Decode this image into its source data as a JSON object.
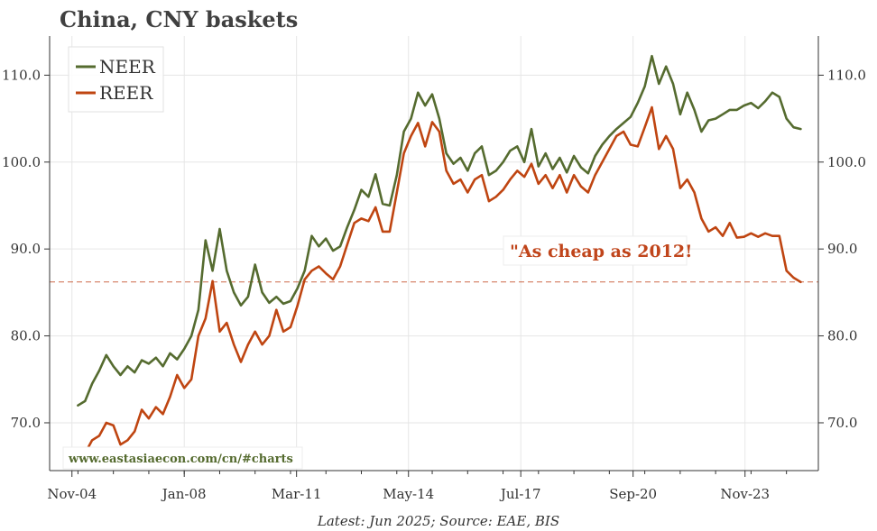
{
  "chart_data": {
    "type": "line",
    "title": "China, CNY baskets",
    "source_note": "Latest: Jun 2025; Source: EAE, BIS",
    "watermark": "www.eastasiaecon.com/cn/#charts",
    "annotation": "\"As cheap as 2012!",
    "reference_line": {
      "value": 86.2,
      "color": "#c0451b"
    },
    "ylim": [
      64.5,
      114.5
    ],
    "y_ticks": [
      70,
      80,
      90,
      100,
      110
    ],
    "y_tick_labels": [
      "70.0",
      "80.0",
      "90.0",
      "100.0",
      "110.0"
    ],
    "xlim": [
      2004.2,
      2025.9
    ],
    "x_ticks": [
      2004.83,
      2008.0,
      2011.17,
      2014.33,
      2017.5,
      2020.67,
      2023.83
    ],
    "x_tick_labels": [
      "Nov-04",
      "Jan-08",
      "Mar-11",
      "May-14",
      "Jul-17",
      "Sep-20",
      "Nov-23"
    ],
    "legend": {
      "position": "top-left",
      "entries": [
        "NEER",
        "REER"
      ]
    },
    "colors": {
      "neer": "#556b2f",
      "reer": "#bf4511",
      "grid": "#e6e6e6",
      "axis": "#333333"
    },
    "series": [
      {
        "name": "NEER",
        "color": "#556b2f",
        "x": [
          2005.0,
          2005.2,
          2005.4,
          2005.6,
          2005.8,
          2006.0,
          2006.2,
          2006.4,
          2006.6,
          2006.8,
          2007.0,
          2007.2,
          2007.4,
          2007.6,
          2007.8,
          2008.0,
          2008.2,
          2008.4,
          2008.6,
          2008.8,
          2009.0,
          2009.2,
          2009.4,
          2009.6,
          2009.8,
          2010.0,
          2010.2,
          2010.4,
          2010.6,
          2010.8,
          2011.0,
          2011.2,
          2011.4,
          2011.6,
          2011.8,
          2012.0,
          2012.2,
          2012.4,
          2012.6,
          2012.8,
          2013.0,
          2013.2,
          2013.4,
          2013.6,
          2013.8,
          2014.0,
          2014.2,
          2014.4,
          2014.6,
          2014.8,
          2015.0,
          2015.2,
          2015.4,
          2015.6,
          2015.8,
          2016.0,
          2016.2,
          2016.4,
          2016.6,
          2016.8,
          2017.0,
          2017.2,
          2017.4,
          2017.6,
          2017.8,
          2018.0,
          2018.2,
          2018.4,
          2018.6,
          2018.8,
          2019.0,
          2019.2,
          2019.4,
          2019.6,
          2019.8,
          2020.0,
          2020.2,
          2020.4,
          2020.6,
          2020.8,
          2021.0,
          2021.2,
          2021.4,
          2021.6,
          2021.8,
          2022.0,
          2022.2,
          2022.4,
          2022.6,
          2022.8,
          2023.0,
          2023.2,
          2023.4,
          2023.6,
          2023.8,
          2024.0,
          2024.2,
          2024.4,
          2024.6,
          2024.8,
          2025.0,
          2025.2,
          2025.4
        ],
        "values": [
          72.0,
          72.5,
          74.5,
          76.0,
          77.8,
          76.5,
          75.5,
          76.5,
          75.8,
          77.2,
          76.8,
          77.5,
          76.5,
          78.0,
          77.3,
          78.5,
          80.0,
          83.0,
          91.0,
          87.5,
          92.3,
          87.5,
          85.0,
          83.5,
          84.5,
          88.2,
          85.0,
          83.8,
          84.5,
          83.7,
          84.0,
          85.5,
          87.5,
          91.5,
          90.3,
          91.2,
          89.8,
          90.3,
          92.5,
          94.5,
          96.8,
          96.0,
          98.6,
          95.2,
          95.0,
          98.5,
          103.5,
          105.0,
          108.0,
          106.5,
          107.8,
          105.0,
          101.0,
          99.8,
          100.5,
          99.0,
          101.0,
          101.8,
          98.5,
          99.0,
          100.0,
          101.3,
          101.8,
          100.0,
          103.8,
          99.5,
          101.0,
          99.2,
          100.5,
          98.8,
          100.7,
          99.4,
          98.7,
          100.7,
          102.0,
          103.0,
          103.8,
          104.5,
          105.2,
          106.8,
          108.7,
          112.2,
          109.0,
          111.0,
          109.0,
          105.5,
          108.0,
          106.0,
          103.5,
          104.8,
          105.0,
          105.5,
          106.0,
          106.0,
          106.5,
          106.8,
          106.2,
          107.0,
          108.0,
          107.5,
          105.0,
          104.0,
          103.8
        ]
      },
      {
        "name": "REER",
        "color": "#bf4511",
        "x": [
          2005.0,
          2005.2,
          2005.4,
          2005.6,
          2005.8,
          2006.0,
          2006.2,
          2006.4,
          2006.6,
          2006.8,
          2007.0,
          2007.2,
          2007.4,
          2007.6,
          2007.8,
          2008.0,
          2008.2,
          2008.4,
          2008.6,
          2008.8,
          2009.0,
          2009.2,
          2009.4,
          2009.6,
          2009.8,
          2010.0,
          2010.2,
          2010.4,
          2010.6,
          2010.8,
          2011.0,
          2011.2,
          2011.4,
          2011.6,
          2011.8,
          2012.0,
          2012.2,
          2012.4,
          2012.6,
          2012.8,
          2013.0,
          2013.2,
          2013.4,
          2013.6,
          2013.8,
          2014.0,
          2014.2,
          2014.4,
          2014.6,
          2014.8,
          2015.0,
          2015.2,
          2015.4,
          2015.6,
          2015.8,
          2016.0,
          2016.2,
          2016.4,
          2016.6,
          2016.8,
          2017.0,
          2017.2,
          2017.4,
          2017.6,
          2017.8,
          2018.0,
          2018.2,
          2018.4,
          2018.6,
          2018.8,
          2019.0,
          2019.2,
          2019.4,
          2019.6,
          2019.8,
          2020.0,
          2020.2,
          2020.4,
          2020.6,
          2020.8,
          2021.0,
          2021.2,
          2021.4,
          2021.6,
          2021.8,
          2022.0,
          2022.2,
          2022.4,
          2022.6,
          2022.8,
          2023.0,
          2023.2,
          2023.4,
          2023.6,
          2023.8,
          2024.0,
          2024.2,
          2024.4,
          2024.6,
          2024.8,
          2025.0,
          2025.2,
          2025.4
        ],
        "values": [
          66.3,
          66.5,
          68.0,
          68.5,
          70.0,
          69.7,
          67.5,
          68.0,
          69.0,
          71.5,
          70.5,
          71.8,
          71.0,
          73.0,
          75.5,
          74.0,
          75.0,
          80.0,
          82.0,
          86.3,
          80.5,
          81.5,
          79.0,
          77.0,
          79.0,
          80.5,
          79.0,
          80.0,
          83.0,
          80.5,
          81.0,
          83.5,
          86.5,
          87.5,
          88.0,
          87.2,
          86.5,
          88.0,
          90.5,
          93.0,
          93.5,
          93.2,
          94.8,
          92.0,
          92.0,
          96.5,
          101.0,
          103.0,
          104.5,
          101.8,
          104.6,
          103.5,
          99.0,
          97.5,
          98.0,
          96.5,
          98.0,
          98.5,
          95.5,
          96.0,
          96.8,
          98.0,
          99.0,
          98.3,
          99.8,
          97.5,
          98.5,
          97.0,
          98.5,
          96.5,
          98.5,
          97.2,
          96.5,
          98.5,
          100.0,
          101.5,
          103.0,
          103.5,
          102.0,
          101.8,
          104.0,
          106.3,
          101.5,
          103.0,
          101.5,
          97.0,
          98.0,
          96.5,
          93.5,
          92.0,
          92.5,
          91.5,
          93.0,
          91.3,
          91.4,
          91.8,
          91.4,
          91.8,
          91.5,
          91.5,
          87.5,
          86.7,
          86.2
        ]
      }
    ]
  }
}
